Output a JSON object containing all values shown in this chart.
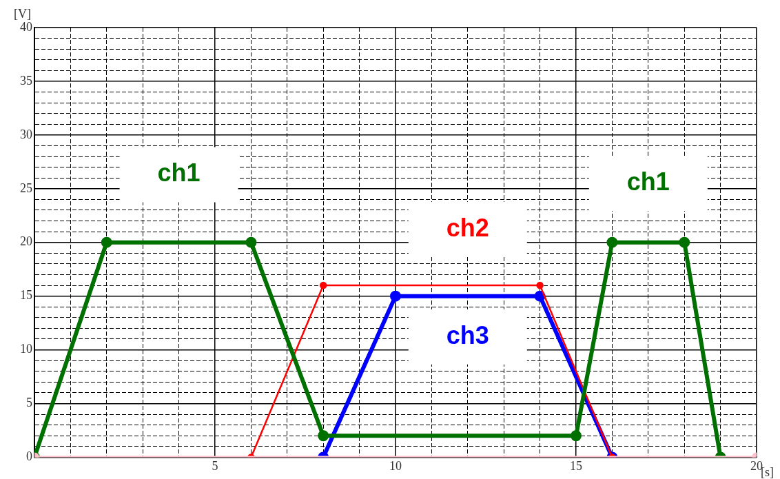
{
  "chart_data": {
    "type": "line",
    "xlabel": "[s]",
    "ylabel": "[V]",
    "xlim": [
      0,
      20
    ],
    "ylim": [
      0,
      40
    ],
    "xticks": [
      {
        "value": 0,
        "label": null
      },
      {
        "value": 1,
        "label": null
      },
      {
        "value": 2,
        "label": null
      },
      {
        "value": 3,
        "label": null
      },
      {
        "value": 4,
        "label": null
      },
      5,
      {
        "value": 6,
        "label": null
      },
      {
        "value": 7,
        "label": null
      },
      {
        "value": 8,
        "label": null
      },
      {
        "value": 9,
        "label": null
      },
      10,
      {
        "value": 11,
        "label": null
      },
      {
        "value": 12,
        "label": null
      },
      {
        "value": 13,
        "label": null
      },
      {
        "value": 14,
        "label": null
      },
      15,
      {
        "value": 16,
        "label": null
      },
      {
        "value": 17,
        "label": null
      },
      {
        "value": 18,
        "label": null
      },
      {
        "value": 19,
        "label": null
      },
      20
    ],
    "yticks": [
      0,
      {
        "value": 1,
        "label": null
      },
      {
        "value": 2,
        "label": null
      },
      {
        "value": 3,
        "label": null
      },
      {
        "value": 4,
        "label": null
      },
      5,
      {
        "value": 6,
        "label": null
      },
      {
        "value": 7,
        "label": null
      },
      {
        "value": 8,
        "label": null
      },
      {
        "value": 9,
        "label": null
      },
      10,
      {
        "value": 11,
        "label": null
      },
      {
        "value": 12,
        "label": null
      },
      {
        "value": 13,
        "label": null
      },
      {
        "value": 14,
        "label": null
      },
      15,
      {
        "value": 16,
        "label": null
      },
      {
        "value": 17,
        "label": null
      },
      {
        "value": 18,
        "label": null
      },
      {
        "value": 19,
        "label": null
      },
      20,
      {
        "value": 21,
        "label": null
      },
      {
        "value": 22,
        "label": null
      },
      {
        "value": 23,
        "label": null
      },
      {
        "value": 24,
        "label": null
      },
      25,
      {
        "value": 26,
        "label": null
      },
      {
        "value": 27,
        "label": null
      },
      {
        "value": 28,
        "label": null
      },
      {
        "value": 29,
        "label": null
      },
      30,
      {
        "value": 31,
        "label": null
      },
      {
        "value": 32,
        "label": null
      },
      {
        "value": 33,
        "label": null
      },
      {
        "value": 34,
        "label": null
      },
      35,
      {
        "value": 36,
        "label": null
      },
      {
        "value": 37,
        "label": null
      },
      {
        "value": 38,
        "label": null
      },
      {
        "value": 39,
        "label": null
      },
      40
    ],
    "grid": true,
    "legend": false,
    "marker": "circle",
    "line_style": "solid",
    "series": [
      {
        "color": "#ffc0cb",
        "x": [
          0,
          20
        ],
        "values": [
          0,
          0
        ]
      },
      {
        "name": "ch1",
        "color": "#007000",
        "x": [
          0,
          2,
          6,
          8,
          15,
          16,
          18,
          19
        ],
        "values": [
          0,
          20,
          20,
          2,
          2,
          20,
          20,
          0
        ]
      },
      {
        "name": "ch2",
        "color": "#ff0000",
        "x": [
          6,
          8,
          14,
          16
        ],
        "values": [
          0,
          16,
          16,
          0
        ]
      },
      {
        "name": "ch3",
        "color": "#0000ff",
        "x": [
          8,
          10,
          14,
          16
        ],
        "values": [
          0,
          15,
          15,
          0
        ]
      }
    ]
  }
}
